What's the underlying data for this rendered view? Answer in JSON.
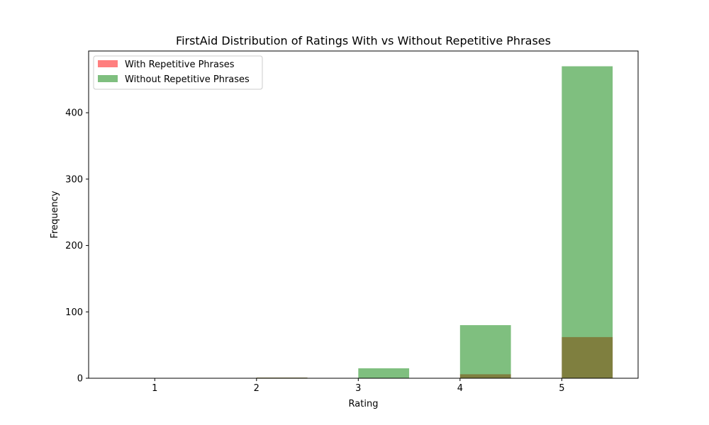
{
  "chart_data": {
    "type": "bar",
    "title": "FirstAid Distribution of Ratings With vs Without Repetitive Phrases",
    "xlabel": "Rating",
    "ylabel": "Frequency",
    "xlim": [
      0.35,
      5.75
    ],
    "ylim": [
      0,
      493
    ],
    "xticks": [
      1,
      2,
      3,
      4,
      5
    ],
    "yticks": [
      0,
      100,
      200,
      300,
      400
    ],
    "bar_width": 0.5,
    "legend_position": "upper-left",
    "grid": false,
    "series": [
      {
        "name": "With Repetitive Phrases",
        "color": "#ff0000",
        "opacity": 0.5,
        "bins": [
          {
            "start": 2,
            "end": 2.5,
            "value": 1
          },
          {
            "start": 4,
            "end": 4.5,
            "value": 6
          },
          {
            "start": 5,
            "end": 5.5,
            "value": 62
          }
        ]
      },
      {
        "name": "Without Repetitive Phrases",
        "color": "#008000",
        "opacity": 0.5,
        "bins": [
          {
            "start": 2,
            "end": 2.5,
            "value": 1
          },
          {
            "start": 3,
            "end": 3.5,
            "value": 15
          },
          {
            "start": 4,
            "end": 4.5,
            "value": 80
          },
          {
            "start": 5,
            "end": 5.5,
            "value": 470
          }
        ]
      }
    ]
  }
}
